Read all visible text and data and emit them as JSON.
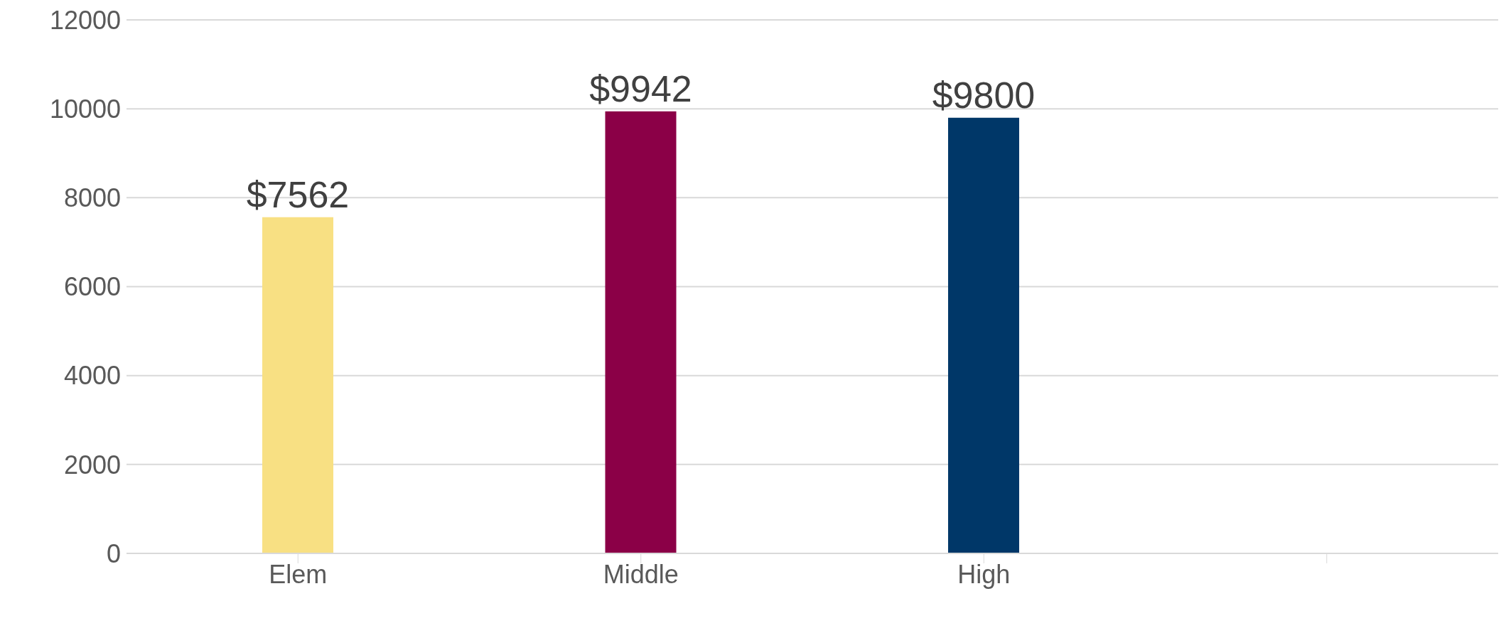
{
  "chart_data": {
    "type": "bar",
    "categories": [
      "Elem",
      "Middle",
      "High",
      null
    ],
    "values": [
      7562,
      9942,
      9800,
      null
    ],
    "colors": [
      "#f8e083",
      "#8b0047",
      "#003768",
      null
    ],
    "value_labels": [
      "$7562",
      "$9942",
      "$9800",
      null
    ],
    "ylim": [
      0,
      12000
    ],
    "yticks": [
      0,
      2000,
      4000,
      6000,
      8000,
      10000,
      12000
    ],
    "grid": "y"
  }
}
